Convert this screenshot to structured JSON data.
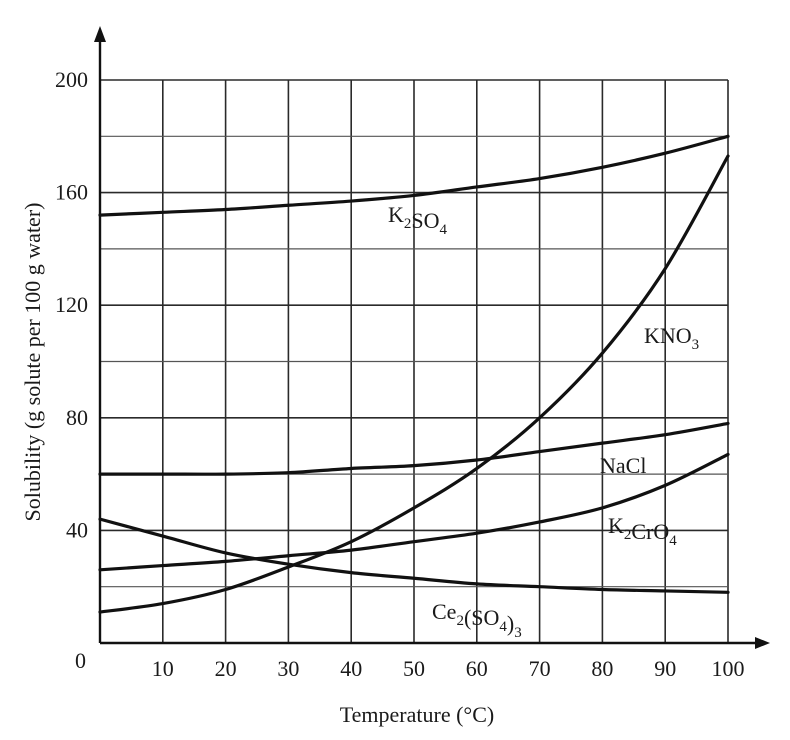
{
  "chart_data": {
    "type": "line",
    "xlabel": "Temperature (°C)",
    "ylabel": "Solubility (g solute per 100 g water)",
    "xlim": [
      0,
      100
    ],
    "ylim": [
      0,
      200
    ],
    "x_ticks": [
      "10",
      "20",
      "30",
      "40",
      "50",
      "60",
      "70",
      "80",
      "90",
      "100"
    ],
    "y_ticks": [
      "40",
      "80",
      "120",
      "160",
      "200"
    ],
    "origin_label": "0",
    "grid": true,
    "series": [
      {
        "name": "K2SO4",
        "label_main": "K",
        "label_parts": [
          {
            "text": "K",
            "sub": false
          },
          {
            "text": "2",
            "sub": true
          },
          {
            "text": "SO",
            "sub": false
          },
          {
            "text": "4",
            "sub": true
          }
        ],
        "x": [
          0,
          10,
          20,
          30,
          40,
          50,
          60,
          70,
          80,
          90,
          100
        ],
        "y": [
          152,
          153,
          154,
          155.5,
          157,
          159,
          162,
          165,
          169,
          174,
          180
        ]
      },
      {
        "name": "KNO3",
        "label_parts": [
          {
            "text": "KNO",
            "sub": false
          },
          {
            "text": "3",
            "sub": true
          }
        ],
        "x": [
          0,
          10,
          20,
          30,
          40,
          50,
          60,
          70,
          80,
          90,
          100
        ],
        "y": [
          11,
          14,
          19,
          27,
          36,
          48,
          62,
          80,
          103,
          133,
          173
        ]
      },
      {
        "name": "NaCl",
        "label_parts": [
          {
            "text": "NaCl",
            "sub": false
          }
        ],
        "x": [
          0,
          10,
          20,
          30,
          40,
          50,
          60,
          70,
          80,
          90,
          100
        ],
        "y": [
          60,
          60,
          60,
          60.5,
          62,
          63,
          65,
          68,
          71,
          74,
          78
        ]
      },
      {
        "name": "K2CrO4",
        "label_parts": [
          {
            "text": "K",
            "sub": false
          },
          {
            "text": "2",
            "sub": true
          },
          {
            "text": "CrO",
            "sub": false
          },
          {
            "text": "4",
            "sub": true
          }
        ],
        "x": [
          0,
          10,
          20,
          30,
          40,
          50,
          60,
          70,
          80,
          90,
          100
        ],
        "y": [
          26,
          27.5,
          29,
          31,
          33,
          36,
          39,
          43,
          48,
          56,
          67
        ]
      },
      {
        "name": "Ce2(SO4)3",
        "label_parts": [
          {
            "text": "Ce",
            "sub": false
          },
          {
            "text": "2",
            "sub": true
          },
          {
            "text": "(SO",
            "sub": false
          },
          {
            "text": "4",
            "sub": true
          },
          {
            "text": ")",
            "sub": false
          },
          {
            "text": "3",
            "sub": true
          }
        ],
        "x": [
          0,
          10,
          20,
          30,
          40,
          50,
          60,
          70,
          80,
          90,
          100
        ],
        "y": [
          44,
          38,
          32,
          28,
          25,
          23,
          21,
          20,
          19,
          18.5,
          18
        ]
      }
    ]
  }
}
